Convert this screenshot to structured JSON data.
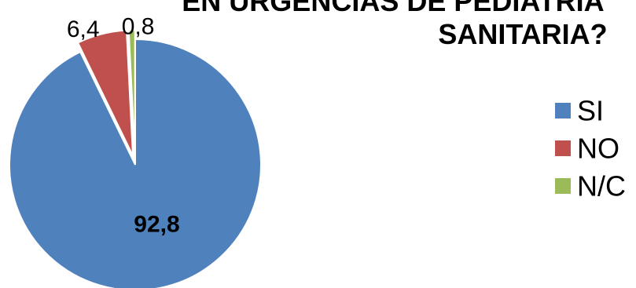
{
  "chart_data": {
    "type": "pie",
    "title_lines": [
      "EN URGENCIAS DE PEDIATRÍA",
      "SANITARIA?"
    ],
    "categories": [
      "SI",
      "NO",
      "N/C"
    ],
    "values": [
      92.8,
      6.4,
      0.8
    ],
    "value_labels": [
      "92,8",
      "6,4",
      "0,8"
    ],
    "colors": [
      "#4F81BD",
      "#C0504D",
      "#9BBB59"
    ],
    "exploded": true,
    "legend_position": "right"
  }
}
